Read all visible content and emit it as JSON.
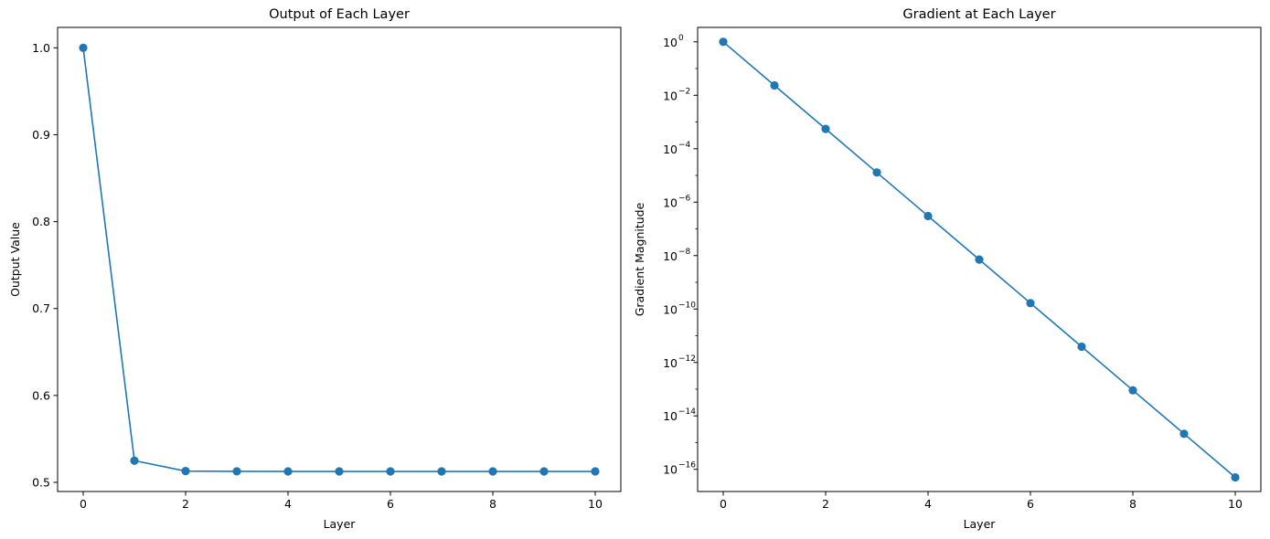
{
  "series_color": "#1f77b4",
  "chart_data": [
    {
      "type": "line",
      "title": "Output of Each Layer",
      "xlabel": "Layer",
      "ylabel": "Output Value",
      "yscale": "linear",
      "xlim": [
        -0.5,
        10.5
      ],
      "ylim": [
        0.4895,
        1.0235
      ],
      "xticks": [
        0,
        2,
        4,
        6,
        8,
        10
      ],
      "yticks": [
        0.5,
        0.6,
        0.7,
        0.8,
        0.9,
        1.0
      ],
      "ytick_labels": [
        "0.5",
        "0.6",
        "0.7",
        "0.8",
        "0.9",
        "1.0"
      ],
      "grid": false,
      "marker": "circle",
      "x": [
        0,
        1,
        2,
        3,
        4,
        5,
        6,
        7,
        8,
        9,
        10
      ],
      "y": [
        1.0,
        0.525,
        0.513,
        0.5127,
        0.5126,
        0.5126,
        0.5126,
        0.5126,
        0.5126,
        0.5126,
        0.5126
      ]
    },
    {
      "type": "line",
      "title": "Gradient at Each Layer",
      "xlabel": "Layer",
      "ylabel": "Gradient Magnitude",
      "yscale": "log",
      "xlim": [
        -0.5,
        10.5
      ],
      "ylim": [
        1.48e-17,
        3.47
      ],
      "xticks": [
        0,
        2,
        4,
        6,
        8,
        10
      ],
      "yticks": [
        1,
        0.01,
        0.0001,
        1e-06,
        1e-08,
        1e-10,
        1e-12,
        1e-14,
        1e-16
      ],
      "ytick_exponents": [
        "0",
        "−2",
        "−4",
        "−6",
        "−8",
        "−10",
        "−12",
        "−14",
        "−16"
      ],
      "grid": false,
      "marker": "circle",
      "x": [
        0,
        1,
        2,
        3,
        4,
        5,
        6,
        7,
        8,
        9,
        10
      ],
      "y": [
        1.0,
        0.0234,
        0.00055,
        1.29e-05,
        3.03e-07,
        7.1e-09,
        1.66e-10,
        3.9e-12,
        9.1e-14,
        2.14e-15,
        5e-17
      ]
    }
  ]
}
